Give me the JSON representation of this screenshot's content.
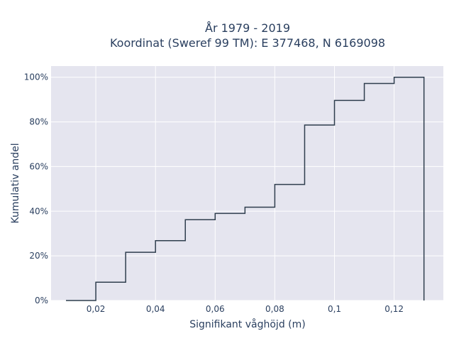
{
  "chart_data": {
    "type": "line",
    "subtype": "cumulative-step",
    "title_line1": "År 1979 - 2019",
    "title_line2": "Koordinat (Sweref 99 TM): E 377468, N 6169098",
    "xlabel": "Signifikant våghöjd (m)",
    "ylabel": "Kumulativ andel",
    "xlim": [
      0.005,
      0.1365
    ],
    "ylim": [
      0,
      1.05
    ],
    "grid": true,
    "x_ticks": [
      0.02,
      0.04,
      0.06,
      0.08,
      0.1,
      0.12
    ],
    "x_tick_labels": [
      "0,02",
      "0,04",
      "0,06",
      "0,08",
      "0,1",
      "0,12"
    ],
    "y_ticks": [
      0,
      0.2,
      0.4,
      0.6,
      0.8,
      1.0
    ],
    "y_tick_labels": [
      "0%",
      "20%",
      "40%",
      "60%",
      "80%",
      "100%"
    ],
    "series": [
      {
        "line_color": "#2f3e4e",
        "bin_edges": [
          0.01,
          0.02,
          0.03,
          0.04,
          0.05,
          0.06,
          0.07,
          0.08,
          0.09,
          0.1,
          0.11,
          0.12,
          0.13
        ],
        "cumulative": [
          0.0,
          0.082,
          0.216,
          0.268,
          0.362,
          0.39,
          0.418,
          0.52,
          0.786,
          0.896,
          0.972,
          1.0
        ]
      }
    ],
    "colors": {
      "plot_bg": "#e5e5ef",
      "grid": "#ffffff",
      "text": "#2a3f5f"
    }
  }
}
